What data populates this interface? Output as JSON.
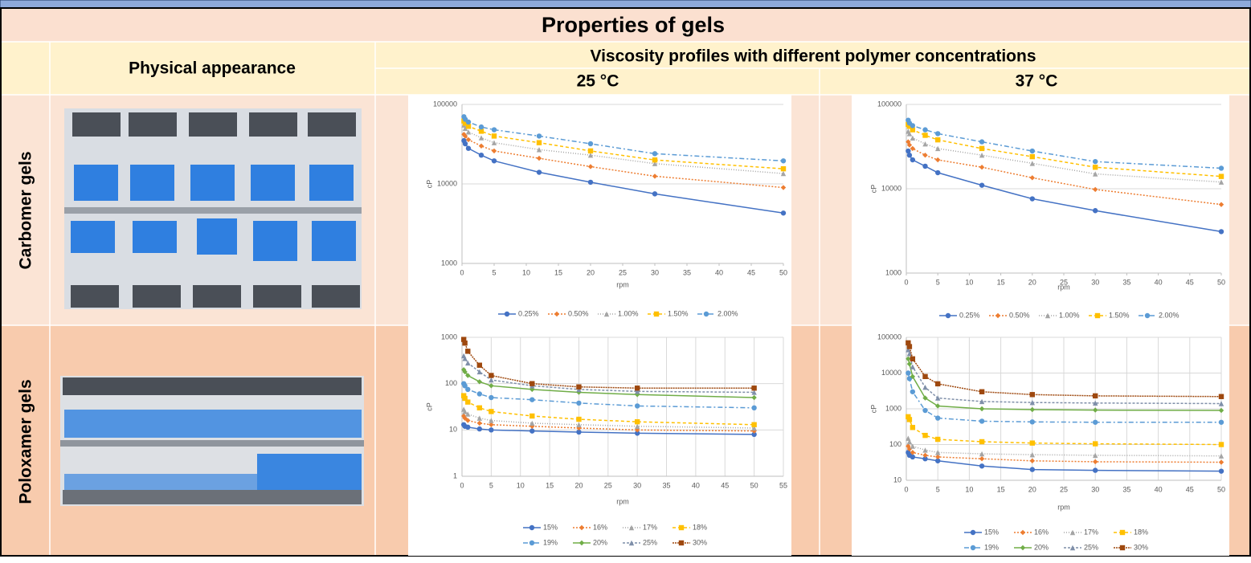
{
  "header": {
    "title": "Properties of gels",
    "physical_appearance": "Physical appearance",
    "viscosity": "Viscosity profiles with different polymer concentrations",
    "temp_25": "25 °C",
    "temp_37": "37 °C"
  },
  "rows": [
    "Carbomer gels",
    "Poloxamer gels"
  ],
  "chart_data": [
    {
      "type": "line",
      "xlabel": "rpm",
      "ylabel": "cP",
      "log_y": true,
      "grid": "y",
      "x": [
        0.3,
        0.5,
        1,
        3,
        5,
        12,
        20,
        30,
        50
      ],
      "xlim": [
        0,
        50
      ],
      "xticks": [
        0,
        5,
        10,
        15,
        20,
        25,
        30,
        35,
        40,
        45,
        50
      ],
      "ylim": [
        1000,
        100000
      ],
      "yticks": [
        1000,
        10000,
        100000
      ],
      "series": [
        {
          "name": "0.25%",
          "color": "#4472c4",
          "values": [
            35000,
            32000,
            28000,
            23000,
            19500,
            14000,
            10500,
            7500,
            4300
          ]
        },
        {
          "name": "0.50%",
          "color": "#ed7d31",
          "values": [
            42000,
            40000,
            36000,
            30000,
            26000,
            21000,
            16500,
            12500,
            9000
          ]
        },
        {
          "name": "1.00%",
          "color": "#a5a5a5",
          "values": [
            55000,
            50000,
            45000,
            38000,
            33000,
            27000,
            23000,
            18000,
            13500
          ]
        },
        {
          "name": "1.50%",
          "color": "#ffc000",
          "values": [
            62000,
            58000,
            53000,
            46000,
            40000,
            33000,
            26000,
            20000,
            15500
          ]
        },
        {
          "name": "2.00%",
          "color": "#5b9bd5",
          "values": [
            70000,
            65000,
            60000,
            52000,
            48000,
            40000,
            32000,
            24000,
            19500
          ]
        }
      ]
    },
    {
      "type": "line",
      "xlabel": "rpm",
      "ylabel": "cP",
      "log_y": true,
      "grid": "y",
      "x": [
        0.3,
        0.5,
        1,
        3,
        5,
        12,
        20,
        30,
        50
      ],
      "xlim": [
        0,
        50
      ],
      "xticks": [
        0,
        5,
        10,
        15,
        20,
        25,
        30,
        35,
        40,
        45,
        50
      ],
      "ylim": [
        1000,
        100000
      ],
      "yticks": [
        1000,
        10000,
        100000
      ],
      "series": [
        {
          "name": "0.25%",
          "color": "#4472c4",
          "values": [
            28000,
            25000,
            22000,
            18500,
            15500,
            11000,
            7600,
            5500,
            3100
          ]
        },
        {
          "name": "0.50%",
          "color": "#ed7d31",
          "values": [
            36000,
            33000,
            30000,
            25000,
            22000,
            18000,
            13500,
            9800,
            6500
          ]
        },
        {
          "name": "1.00%",
          "color": "#a5a5a5",
          "values": [
            48000,
            45000,
            40000,
            34000,
            30000,
            25000,
            20000,
            15000,
            12000
          ]
        },
        {
          "name": "1.50%",
          "color": "#ffc000",
          "values": [
            58000,
            55000,
            50000,
            43000,
            38000,
            30000,
            24000,
            18000,
            14000
          ]
        },
        {
          "name": "2.00%",
          "color": "#5b9bd5",
          "values": [
            65000,
            60000,
            56000,
            50000,
            45000,
            36000,
            28000,
            21000,
            17500
          ]
        }
      ]
    },
    {
      "type": "line",
      "xlabel": "rpm",
      "ylabel": "cP",
      "log_y": true,
      "grid": "both",
      "x": [
        0.3,
        0.5,
        1,
        3,
        5,
        12,
        20,
        30,
        50
      ],
      "xlim": [
        0,
        55
      ],
      "xticks": [
        0,
        5,
        10,
        15,
        20,
        25,
        30,
        35,
        40,
        45,
        50,
        55
      ],
      "ylim": [
        1,
        1000
      ],
      "yticks": [
        1,
        10,
        100,
        1000
      ],
      "series": [
        {
          "name": "15%",
          "color": "#4472c4",
          "values": [
            13,
            12,
            11.5,
            10.5,
            10,
            9.5,
            9,
            8.5,
            8
          ]
        },
        {
          "name": "16%",
          "color": "#ed7d31",
          "values": [
            20,
            18,
            16,
            14,
            13,
            12,
            11,
            10,
            9.5
          ]
        },
        {
          "name": "17%",
          "color": "#a5a5a5",
          "values": [
            28,
            25,
            22,
            18,
            16,
            14,
            13,
            12,
            11
          ]
        },
        {
          "name": "18%",
          "color": "#ffc000",
          "values": [
            55,
            48,
            40,
            30,
            25,
            20,
            17,
            15,
            13
          ]
        },
        {
          "name": "19%",
          "color": "#5b9bd5",
          "values": [
            100,
            90,
            75,
            60,
            50,
            45,
            38,
            33,
            30
          ]
        },
        {
          "name": "20%",
          "color": "#70ad47",
          "values": [
            200,
            180,
            150,
            110,
            90,
            75,
            65,
            58,
            50
          ]
        },
        {
          "name": "25%",
          "color": "#7f8fa9",
          "values": [
            400,
            350,
            280,
            180,
            120,
            90,
            75,
            68,
            65
          ]
        },
        {
          "name": "30%",
          "color": "#9e480e",
          "values": [
            900,
            750,
            500,
            250,
            150,
            100,
            85,
            80,
            80
          ]
        }
      ]
    },
    {
      "type": "line",
      "xlabel": "rpm",
      "ylabel": "cP",
      "log_y": true,
      "grid": "both",
      "x": [
        0.3,
        0.5,
        1,
        3,
        5,
        12,
        20,
        30,
        50
      ],
      "xlim": [
        0,
        50
      ],
      "xticks": [
        0,
        5,
        10,
        15,
        20,
        25,
        30,
        35,
        40,
        45,
        50
      ],
      "ylim": [
        10,
        100000
      ],
      "yticks": [
        10,
        100,
        1000,
        10000,
        100000
      ],
      "series": [
        {
          "name": "15%",
          "color": "#4472c4",
          "values": [
            60,
            50,
            45,
            40,
            35,
            25,
            20,
            19,
            18
          ]
        },
        {
          "name": "16%",
          "color": "#ed7d31",
          "values": [
            90,
            75,
            60,
            50,
            45,
            40,
            35,
            33,
            32
          ]
        },
        {
          "name": "17%",
          "color": "#a5a5a5",
          "values": [
            150,
            120,
            90,
            70,
            60,
            55,
            52,
            50,
            48
          ]
        },
        {
          "name": "18%",
          "color": "#ffc000",
          "values": [
            600,
            500,
            300,
            180,
            140,
            120,
            110,
            105,
            100
          ]
        },
        {
          "name": "19%",
          "color": "#5b9bd5",
          "values": [
            10000,
            7000,
            3000,
            900,
            550,
            450,
            430,
            420,
            420
          ]
        },
        {
          "name": "20%",
          "color": "#70ad47",
          "values": [
            25000,
            18000,
            8000,
            2000,
            1200,
            1000,
            950,
            920,
            900
          ]
        },
        {
          "name": "25%",
          "color": "#7f8fa9",
          "values": [
            45000,
            35000,
            15000,
            4000,
            2000,
            1600,
            1500,
            1450,
            1400
          ]
        },
        {
          "name": "30%",
          "color": "#9e480e",
          "values": [
            70000,
            55000,
            25000,
            8000,
            5000,
            3000,
            2500,
            2300,
            2200
          ]
        }
      ]
    }
  ]
}
